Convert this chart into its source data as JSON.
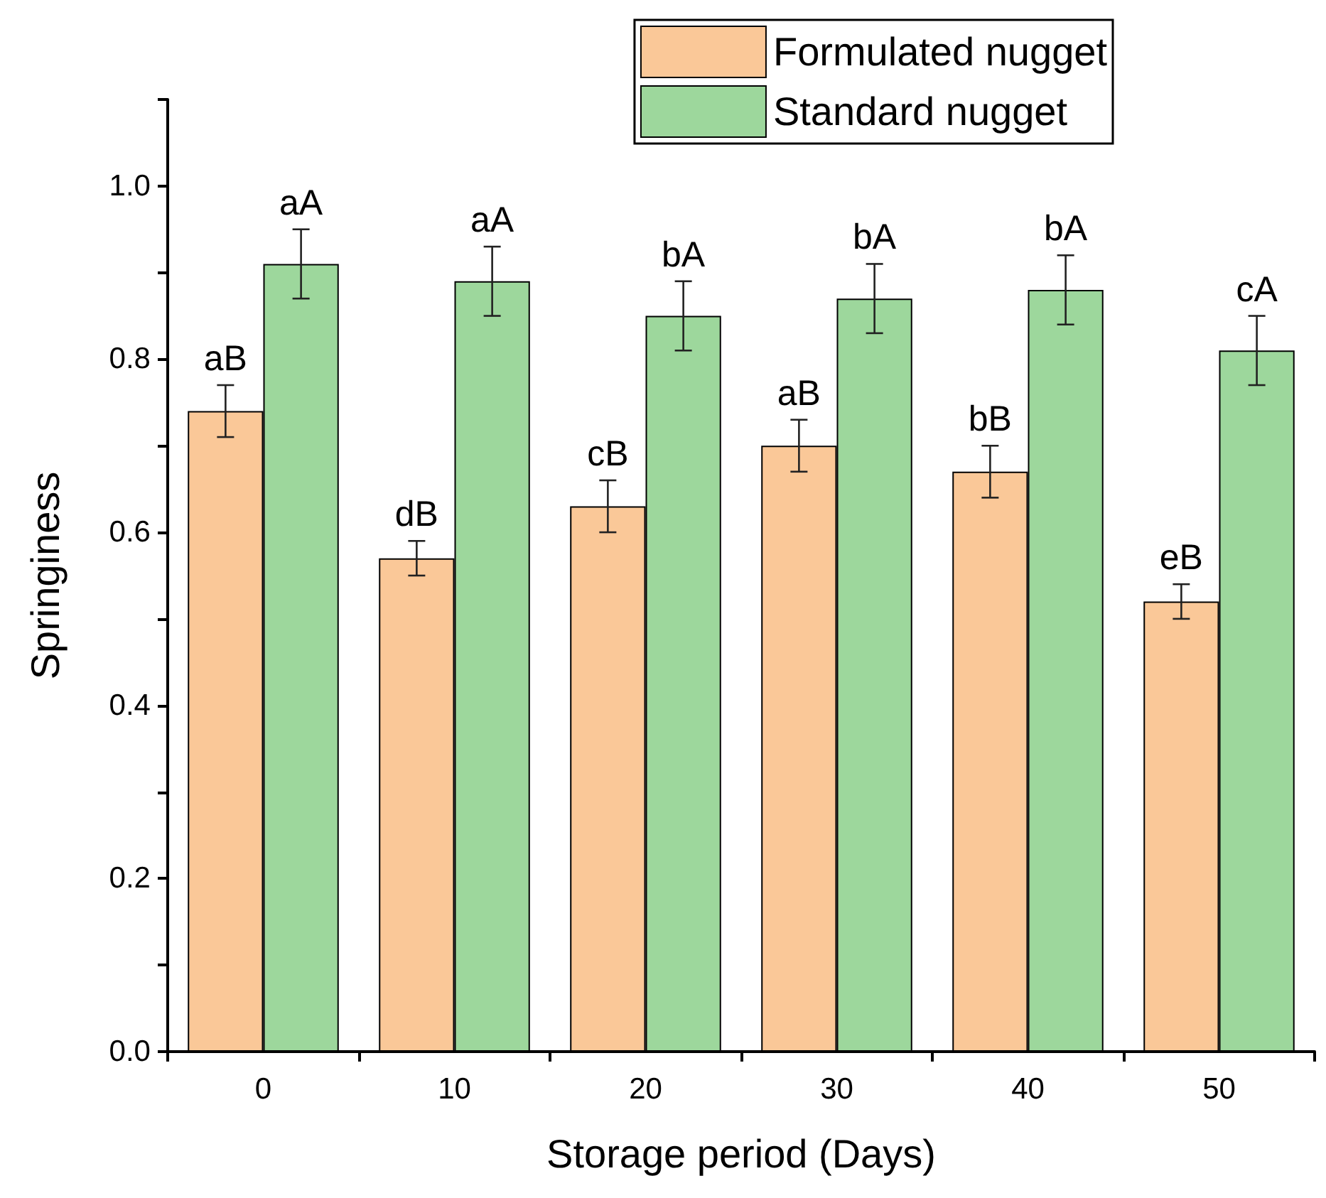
{
  "chart_data": {
    "type": "bar",
    "xlabel": "Storage period (Days)",
    "ylabel": "Springiness",
    "categories": [
      "0",
      "10",
      "20",
      "30",
      "40",
      "50"
    ],
    "series": [
      {
        "name": "Formulated nugget",
        "color": "#fac898",
        "values": [
          0.74,
          0.57,
          0.63,
          0.7,
          0.67,
          0.52
        ],
        "errors": [
          0.03,
          0.02,
          0.03,
          0.03,
          0.03,
          0.02
        ],
        "value_labels": [
          "aB",
          "dB",
          "cB",
          "aB",
          "bB",
          "eB"
        ]
      },
      {
        "name": "Standard nugget",
        "color": "#9dd79c",
        "values": [
          0.91,
          0.89,
          0.85,
          0.87,
          0.88,
          0.81
        ],
        "errors": [
          0.04,
          0.04,
          0.04,
          0.04,
          0.04,
          0.04
        ],
        "value_labels": [
          "aA",
          "aA",
          "bA",
          "bA",
          "bA",
          "cA"
        ]
      }
    ],
    "ylim": [
      0,
      1.1
    ],
    "yticks": [
      {
        "value": 0,
        "label": "0.0"
      },
      {
        "value": 0.1,
        "label": null
      },
      {
        "value": 0.2,
        "label": "0.2"
      },
      {
        "value": 0.3,
        "label": null
      },
      {
        "value": 0.4,
        "label": "0.4"
      },
      {
        "value": 0.5,
        "label": null
      },
      {
        "value": 0.6,
        "label": "0.6"
      },
      {
        "value": 0.7,
        "label": null
      },
      {
        "value": 0.8,
        "label": "0.8"
      },
      {
        "value": 0.9,
        "label": null
      },
      {
        "value": 1,
        "label": "1.0"
      },
      {
        "value": 1.1,
        "label": null
      }
    ],
    "grid": false,
    "legend": "top right"
  }
}
